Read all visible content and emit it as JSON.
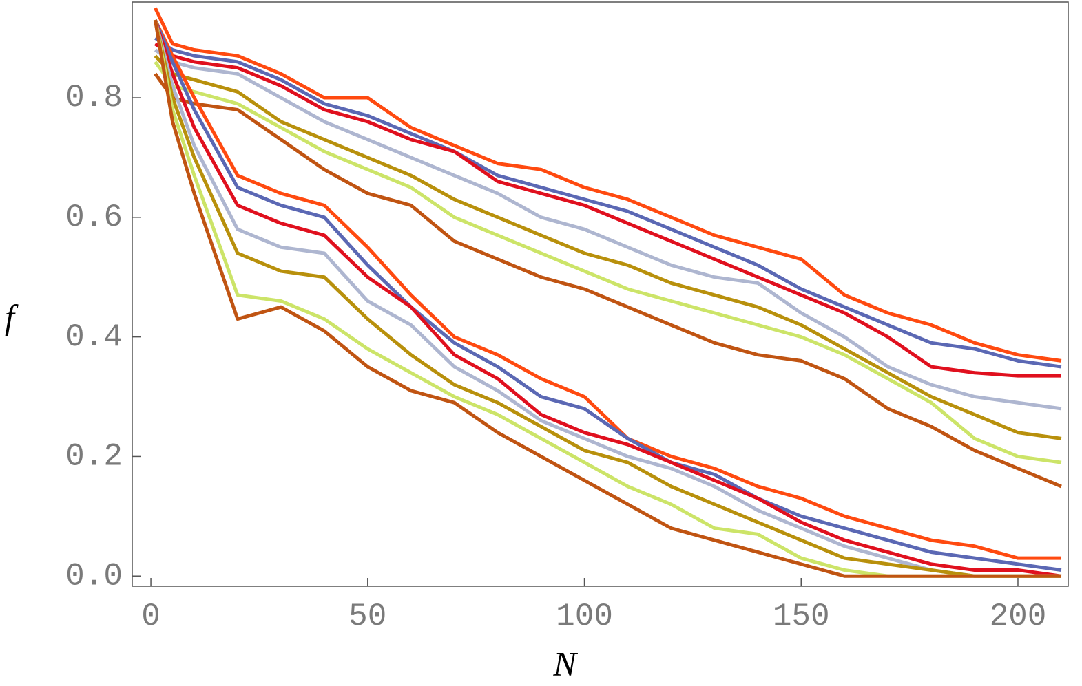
{
  "chart_data": {
    "type": "line",
    "x_label": "N",
    "y_label": "f",
    "x": [
      1,
      5,
      10,
      20,
      30,
      40,
      50,
      60,
      70,
      80,
      90,
      100,
      110,
      120,
      130,
      140,
      150,
      160,
      170,
      180,
      190,
      200,
      210
    ],
    "xlim": [
      -4.3,
      211.6
    ],
    "ylim": [
      -0.017,
      0.96
    ],
    "xticks": [
      0,
      50,
      100,
      150,
      200
    ],
    "yticks": [
      {
        "value": 0,
        "label": "0.0"
      },
      0.2,
      0.4,
      0.6,
      0.8
    ],
    "series": [
      {
        "color": "#ff4a10",
        "values": [
          0.95,
          0.89,
          0.88,
          0.87,
          0.84,
          0.8,
          0.8,
          0.75,
          0.72,
          0.69,
          0.68,
          0.65,
          0.63,
          0.6,
          0.57,
          0.55,
          0.53,
          0.47,
          0.44,
          0.42,
          0.39,
          0.37,
          0.36
        ]
      },
      {
        "color": "#5b68b4",
        "values": [
          0.9,
          0.88,
          0.87,
          0.86,
          0.83,
          0.79,
          0.77,
          0.74,
          0.71,
          0.67,
          0.65,
          0.63,
          0.61,
          0.58,
          0.55,
          0.52,
          0.48,
          0.45,
          0.42,
          0.39,
          0.38,
          0.36,
          0.35
        ]
      },
      {
        "color": "#e0101e",
        "values": [
          0.89,
          0.87,
          0.86,
          0.85,
          0.82,
          0.78,
          0.76,
          0.73,
          0.71,
          0.66,
          0.64,
          0.62,
          0.59,
          0.56,
          0.53,
          0.5,
          0.47,
          0.44,
          0.4,
          0.35,
          0.34,
          0.335,
          0.335
        ]
      },
      {
        "color": "#aeb6d0",
        "values": [
          0.88,
          0.86,
          0.85,
          0.84,
          0.8,
          0.76,
          0.73,
          0.7,
          0.67,
          0.64,
          0.6,
          0.58,
          0.55,
          0.52,
          0.5,
          0.49,
          0.44,
          0.4,
          0.35,
          0.32,
          0.3,
          0.29,
          0.28
        ]
      },
      {
        "color": "#b8900c",
        "values": [
          0.87,
          0.84,
          0.83,
          0.81,
          0.76,
          0.73,
          0.7,
          0.67,
          0.63,
          0.6,
          0.57,
          0.54,
          0.52,
          0.49,
          0.47,
          0.45,
          0.42,
          0.38,
          0.34,
          0.3,
          0.27,
          0.24,
          0.23
        ]
      },
      {
        "color": "#cce468",
        "values": [
          0.86,
          0.82,
          0.81,
          0.79,
          0.75,
          0.71,
          0.68,
          0.65,
          0.6,
          0.57,
          0.54,
          0.51,
          0.48,
          0.46,
          0.44,
          0.42,
          0.4,
          0.37,
          0.33,
          0.29,
          0.23,
          0.2,
          0.19
        ]
      },
      {
        "color": "#c05412",
        "values": [
          0.84,
          0.8,
          0.79,
          0.78,
          0.73,
          0.68,
          0.64,
          0.62,
          0.56,
          0.53,
          0.5,
          0.48,
          0.45,
          0.42,
          0.39,
          0.37,
          0.36,
          0.33,
          0.28,
          0.25,
          0.21,
          0.18,
          0.15
        ]
      },
      {
        "color": "#ff4a10",
        "values": [
          0.93,
          0.87,
          0.8,
          0.67,
          0.64,
          0.62,
          0.55,
          0.47,
          0.4,
          0.37,
          0.33,
          0.3,
          0.23,
          0.2,
          0.18,
          0.15,
          0.13,
          0.1,
          0.08,
          0.06,
          0.05,
          0.03,
          0.03
        ]
      },
      {
        "color": "#5b68b4",
        "values": [
          0.93,
          0.86,
          0.78,
          0.65,
          0.62,
          0.6,
          0.52,
          0.45,
          0.39,
          0.35,
          0.3,
          0.28,
          0.23,
          0.19,
          0.17,
          0.13,
          0.1,
          0.08,
          0.06,
          0.04,
          0.03,
          0.02,
          0.01
        ]
      },
      {
        "color": "#e0101e",
        "values": [
          0.93,
          0.84,
          0.75,
          0.62,
          0.59,
          0.57,
          0.5,
          0.45,
          0.37,
          0.33,
          0.27,
          0.24,
          0.22,
          0.19,
          0.16,
          0.13,
          0.09,
          0.06,
          0.04,
          0.02,
          0.01,
          0.01,
          0
        ]
      },
      {
        "color": "#aeb6d0",
        "values": [
          0.93,
          0.82,
          0.72,
          0.58,
          0.55,
          0.54,
          0.46,
          0.42,
          0.35,
          0.31,
          0.26,
          0.23,
          0.2,
          0.18,
          0.15,
          0.11,
          0.08,
          0.05,
          0.03,
          0.01,
          0,
          0,
          0
        ]
      },
      {
        "color": "#b8900c",
        "values": [
          0.93,
          0.8,
          0.7,
          0.54,
          0.51,
          0.5,
          0.43,
          0.37,
          0.32,
          0.29,
          0.25,
          0.21,
          0.19,
          0.15,
          0.12,
          0.09,
          0.06,
          0.03,
          0.02,
          0.01,
          0,
          0,
          0
        ]
      },
      {
        "color": "#cce468",
        "values": [
          0.93,
          0.78,
          0.67,
          0.47,
          0.46,
          0.43,
          0.38,
          0.34,
          0.3,
          0.27,
          0.23,
          0.19,
          0.15,
          0.12,
          0.08,
          0.07,
          0.03,
          0.01,
          0,
          0,
          0,
          0,
          0
        ]
      },
      {
        "color": "#c05412",
        "values": [
          0.93,
          0.76,
          0.64,
          0.43,
          0.45,
          0.41,
          0.35,
          0.31,
          0.29,
          0.24,
          0.2,
          0.16,
          0.12,
          0.08,
          0.06,
          0.04,
          0.02,
          0,
          0,
          0,
          0,
          0,
          0
        ]
      }
    ]
  }
}
